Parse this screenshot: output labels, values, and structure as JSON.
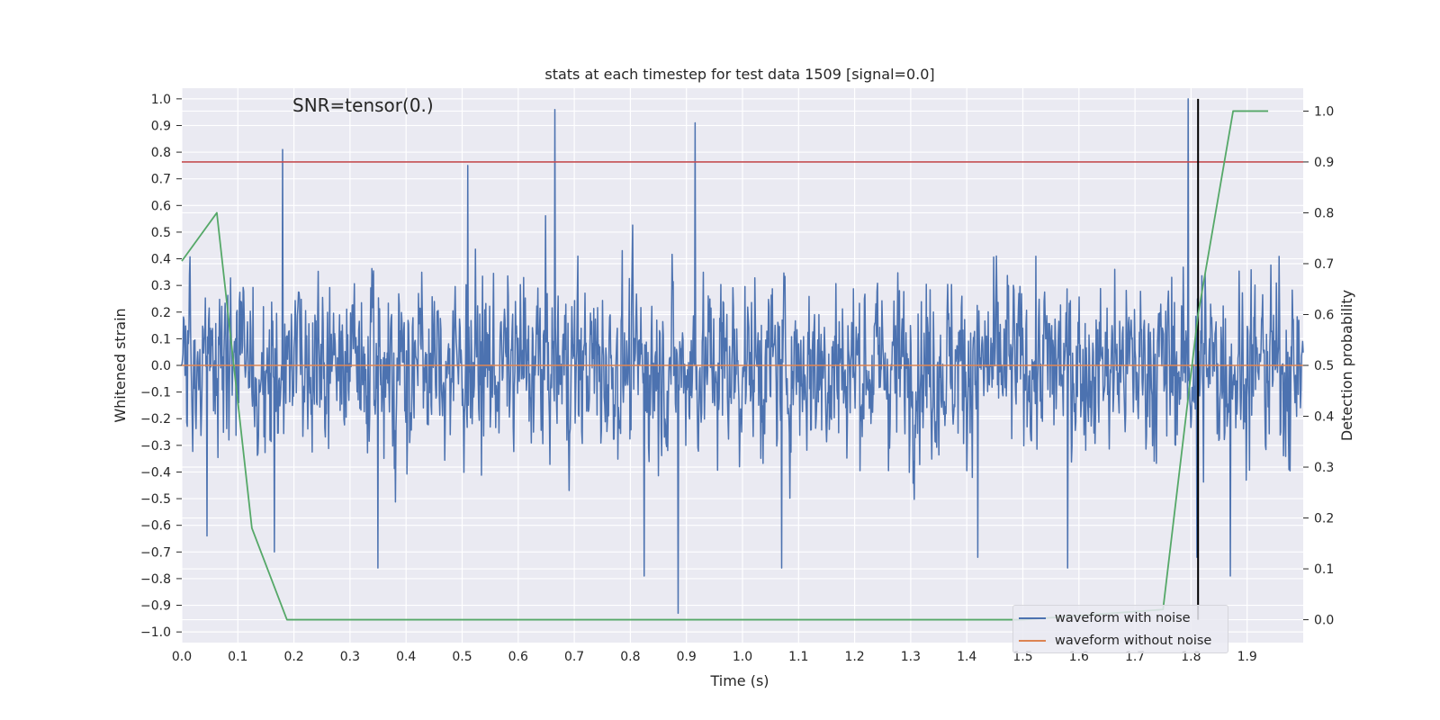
{
  "chart_data": {
    "type": "line",
    "title": "stats at each timestep for test data 1509 [signal=0.0]",
    "annotation": "SNR=tensor(0.)",
    "xlabel": "Time (s)",
    "ylabel": "Whitened strain",
    "y2label": "Detection probability",
    "xlim": [
      0.0,
      2.0
    ],
    "ylim": [
      -1.04,
      1.04
    ],
    "y2lim": [
      -0.045,
      1.045
    ],
    "x_ticks": [
      "0.0",
      "0.1",
      "0.2",
      "0.3",
      "0.4",
      "0.5",
      "0.6",
      "0.7",
      "0.8",
      "0.9",
      "1.0",
      "1.1",
      "1.2",
      "1.3",
      "1.4",
      "1.5",
      "1.6",
      "1.7",
      "1.8",
      "1.9"
    ],
    "y_ticks": [
      "1.0",
      "0.9",
      "0.8",
      "0.7",
      "0.6",
      "0.5",
      "0.4",
      "0.3",
      "0.2",
      "0.1",
      "0.0",
      "−0.1",
      "−0.2",
      "−0.3",
      "−0.4",
      "−0.5",
      "−0.6",
      "−0.7",
      "−0.8",
      "−0.9",
      "−1.0"
    ],
    "y2_ticks": [
      "1.0",
      "0.9",
      "0.8",
      "0.7",
      "0.6",
      "0.5",
      "0.4",
      "0.3",
      "0.2",
      "0.1",
      "0.0"
    ],
    "grid": true,
    "legend_position": "bottom-right",
    "series": [
      {
        "name": "waveform with noise",
        "axis": "left",
        "color": "#4c72b0",
        "style": "dense noise",
        "n_samples": 2048,
        "spikes": [
          {
            "x": 0.18,
            "y": 0.81
          },
          {
            "x": 0.665,
            "y": 0.96
          },
          {
            "x": 0.915,
            "y": 0.91
          },
          {
            "x": 1.795,
            "y": 1.0
          },
          {
            "x": 0.885,
            "y": -0.93
          },
          {
            "x": 0.35,
            "y": -0.76
          },
          {
            "x": 1.07,
            "y": -0.76
          },
          {
            "x": 1.58,
            "y": -0.76
          },
          {
            "x": 0.165,
            "y": -0.7
          },
          {
            "x": 0.825,
            "y": -0.79
          },
          {
            "x": 1.81,
            "y": -0.72
          },
          {
            "x": 1.87,
            "y": -0.79
          },
          {
            "x": 1.42,
            "y": -0.72
          },
          {
            "x": 0.045,
            "y": -0.64
          },
          {
            "x": 0.51,
            "y": 0.75
          }
        ]
      },
      {
        "name": "waveform without noise",
        "axis": "left",
        "color": "#dd8452",
        "x": [
          0.0,
          2.0
        ],
        "y": [
          0.0,
          0.0
        ]
      },
      {
        "name": "",
        "axis": "right",
        "color": "#55a868",
        "x": [
          0.0,
          0.0625,
          0.125,
          0.1875,
          0.25,
          1.0,
          1.5,
          1.75,
          1.8125,
          1.875,
          1.9375
        ],
        "y": [
          0.705,
          0.8,
          0.18,
          0.0,
          0.0,
          0.0,
          0.0,
          0.02,
          0.6,
          1.0,
          1.0
        ]
      }
    ],
    "reference_lines": [
      {
        "kind": "horizontal",
        "axis": "right",
        "value": 0.9,
        "color": "#c44e52"
      },
      {
        "kind": "vertical",
        "value": 1.8125,
        "color": "#000000"
      }
    ]
  }
}
